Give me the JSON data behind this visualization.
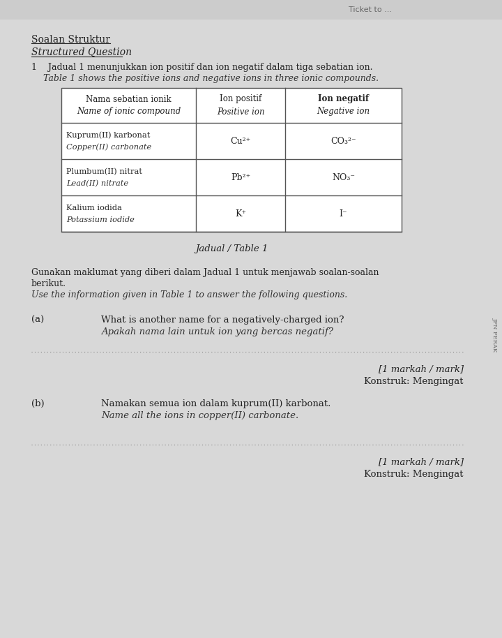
{
  "bg_color": "#d8d8d8",
  "header_text": "Soalan Struktur",
  "header_text2": "Structured Question",
  "q1_malay": "1    Jadual 1 menunjukkan ion positif dan ion negatif dalam tiga sebatian ion.",
  "q1_english": "Table 1 shows the positive ions and negative ions in three ionic compounds.",
  "table_caption": "Jadual / Table 1",
  "col1_header_line1": "Nama sebatian ionik",
  "col1_header_line2": "Name of ionic compound",
  "col2_header_line1": "Ion positif",
  "col2_header_line2": "Positive ion",
  "col3_header_line1": "Ion negatif",
  "col3_header_line2": "Negative ion",
  "row1_col1_line1": "Kuprum(II) karbonat",
  "row1_col1_line2": "Copper(II) carbonate",
  "row1_col2": "Cu²⁺",
  "row1_col3": "CO₃²⁻",
  "row2_col1_line1": "Plumbum(II) nitrat",
  "row2_col1_line2": "Lead(II) nitrate",
  "row2_col2": "Pb²⁺",
  "row2_col3": "NO₃⁻",
  "row3_col1_line1": "Kalium iodida",
  "row3_col1_line2": "Potassium iodide",
  "row3_col2": "K⁺",
  "row3_col3": "I⁻",
  "gunakan_malay": "Gunakan maklumat yang diberi dalam Jadual 1 untuk menjawab soalan-soalan",
  "gunakan_malay2": "berikut.",
  "gunakan_english": "Use the information given in Table 1 to answer the following questions.",
  "qa_label": "(a)",
  "qa_q1": "What is another name for a negatively-charged ion?",
  "qa_q1_malay": "Apakah nama lain untuk ion yang bercas negatif?",
  "qa_mark1": "[1 markah / mark]",
  "qa_konstruk1": "Konstruk: Mengingat",
  "qb_label": "(b)",
  "qb_q1": "Namakan semua ion dalam kuprum(II) karbonat.",
  "qb_q1_english": "Name all the ions in copper(II) carbonate.",
  "qb_mark": "[1 markah / mark]",
  "qb_konstruk": "Konstruk: Mengingat",
  "side_text": "JPN PERAK",
  "ticket_text": "Ticket to ..."
}
